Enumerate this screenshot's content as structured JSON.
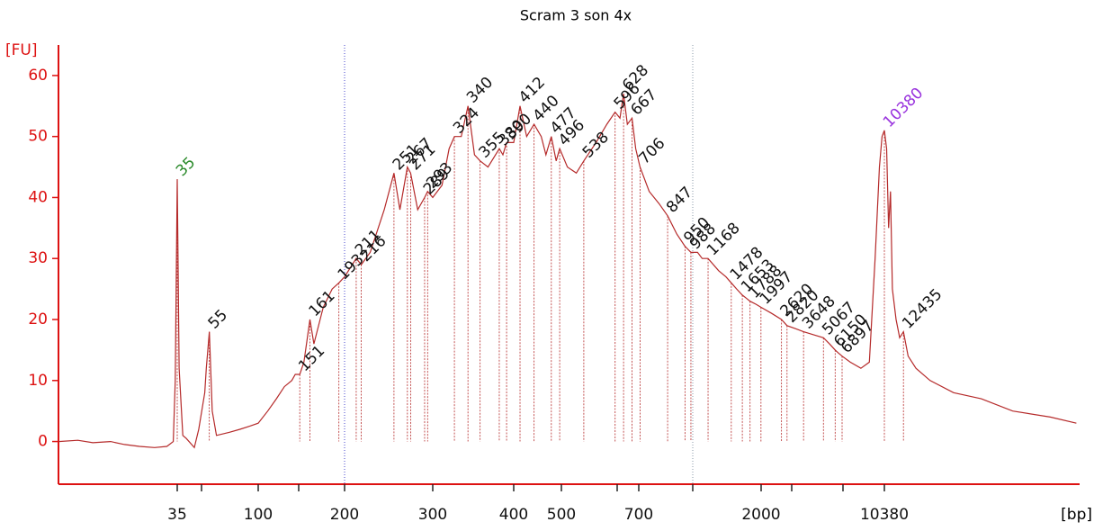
{
  "chart_data": {
    "type": "electropherogram",
    "title": "Scram 3 son 4x",
    "y_label": "[FU]",
    "x_label": "[bp]",
    "axis_color": "#dd1111",
    "trace": {
      "color": "#b52a2a",
      "x": [
        6,
        8,
        10,
        13,
        16,
        20,
        25,
        30,
        33,
        34,
        35,
        36,
        38,
        40,
        45,
        48,
        52,
        53,
        55,
        57,
        60,
        70,
        80,
        90,
        100,
        110,
        120,
        130,
        140,
        145,
        151,
        155,
        161,
        165,
        175,
        185,
        193,
        200,
        211,
        216,
        225,
        240,
        251,
        258,
        267,
        271,
        280,
        289,
        293,
        300,
        310,
        318,
        324,
        332,
        340,
        348,
        355,
        365,
        380,
        385,
        390,
        400,
        412,
        425,
        440,
        455,
        465,
        477,
        488,
        496,
        510,
        525,
        538,
        560,
        580,
        596,
        612,
        628,
        645,
        667,
        685,
        706,
        750,
        800,
        847,
        900,
        950,
        988,
        1050,
        1100,
        1168,
        1300,
        1400,
        1478,
        1560,
        1653,
        1720,
        1788,
        1900,
        1997,
        2300,
        2620,
        2820,
        3200,
        3648,
        4300,
        5067,
        5600,
        6150,
        6500,
        6897,
        7500,
        8300,
        9000,
        9500,
        9900,
        10150,
        10380,
        10600,
        10800,
        11000,
        11200,
        11600,
        12000,
        12435,
        13000,
        14000,
        16000,
        20000,
        26000,
        35000,
        50000,
        64000
      ],
      "y": [
        0,
        0.2,
        -0.2,
        0,
        -0.5,
        -0.8,
        -1,
        -0.8,
        0,
        10,
        43,
        12,
        1,
        0.5,
        -1,
        2,
        8,
        12,
        18,
        5,
        1,
        1.5,
        2,
        2.5,
        3,
        5,
        7,
        9,
        10,
        11,
        11,
        13,
        20,
        16,
        22,
        25,
        26,
        27,
        30,
        29,
        31,
        38,
        44,
        38,
        45,
        44,
        38,
        40,
        41,
        40,
        42,
        48,
        50,
        50,
        55,
        47,
        46,
        45,
        48,
        47,
        49,
        49,
        55,
        50,
        52,
        50,
        47,
        50,
        46,
        48,
        45,
        44,
        46,
        49,
        52,
        54,
        53,
        57,
        52,
        53,
        48,
        45,
        41,
        39,
        37,
        34,
        32,
        31,
        31,
        30,
        30,
        28,
        27,
        26,
        25,
        24,
        23.5,
        23,
        22.5,
        22,
        21,
        20,
        19,
        18.5,
        18,
        17.5,
        17,
        16,
        15,
        14.5,
        14,
        13,
        12,
        13,
        30,
        45,
        50,
        51,
        48,
        35,
        41,
        25,
        20,
        17,
        18,
        14,
        12,
        10,
        8,
        7,
        5,
        4,
        3
      ]
    },
    "peaks": [
      {
        "x": 35,
        "y": 43,
        "color": "#2a8a2a"
      },
      {
        "x": 55,
        "y": 18
      },
      {
        "x": 151,
        "y": 11
      },
      {
        "x": 161,
        "y": 20
      },
      {
        "x": 193,
        "y": 26
      },
      {
        "x": 211,
        "y": 30
      },
      {
        "x": 216,
        "y": 29
      },
      {
        "x": 251,
        "y": 44
      },
      {
        "x": 267,
        "y": 45
      },
      {
        "x": 271,
        "y": 44
      },
      {
        "x": 289,
        "y": 40
      },
      {
        "x": 293,
        "y": 41
      },
      {
        "x": 324,
        "y": 50
      },
      {
        "x": 340,
        "y": 55
      },
      {
        "x": 355,
        "y": 46
      },
      {
        "x": 380,
        "y": 48
      },
      {
        "x": 390,
        "y": 49
      },
      {
        "x": 412,
        "y": 55
      },
      {
        "x": 440,
        "y": 52
      },
      {
        "x": 477,
        "y": 50
      },
      {
        "x": 496,
        "y": 48
      },
      {
        "x": 538,
        "y": 46
      },
      {
        "x": 596,
        "y": 54
      },
      {
        "x": 628,
        "y": 57
      },
      {
        "x": 667,
        "y": 53
      },
      {
        "x": 706,
        "y": 45
      },
      {
        "x": 847,
        "y": 37
      },
      {
        "x": 950,
        "y": 32
      },
      {
        "x": 988,
        "y": 31
      },
      {
        "x": 1168,
        "y": 30
      },
      {
        "x": 1478,
        "y": 26
      },
      {
        "x": 1653,
        "y": 24
      },
      {
        "x": 1788,
        "y": 23
      },
      {
        "x": 1997,
        "y": 22
      },
      {
        "x": 2620,
        "y": 20
      },
      {
        "x": 2820,
        "y": 19
      },
      {
        "x": 3648,
        "y": 18
      },
      {
        "x": 5067,
        "y": 17
      },
      {
        "x": 6150,
        "y": 15
      },
      {
        "x": 6897,
        "y": 14
      },
      {
        "x": 10380,
        "y": 51,
        "color": "#9933dd"
      },
      {
        "x": 12435,
        "y": 18
      }
    ],
    "peak_label_color": "#111111",
    "region": [
      200,
      1000
    ],
    "region_colors": [
      "#4444cc",
      "#8899aa"
    ],
    "xlim": [
      6,
      66000
    ],
    "xticks": [
      35,
      {
        "value": 50,
        "label": null
      },
      100,
      {
        "value": 150,
        "label": null
      },
      200,
      300,
      400,
      500,
      {
        "value": 600,
        "label": null
      },
      700,
      {
        "value": 1000,
        "label": null
      },
      2000,
      {
        "value": 3000,
        "label": null
      },
      {
        "value": 7000,
        "label": null
      },
      10380
    ],
    "ylim": [
      -7,
      65
    ],
    "yticks": [
      0,
      10,
      20,
      30,
      40,
      50,
      60
    ]
  }
}
